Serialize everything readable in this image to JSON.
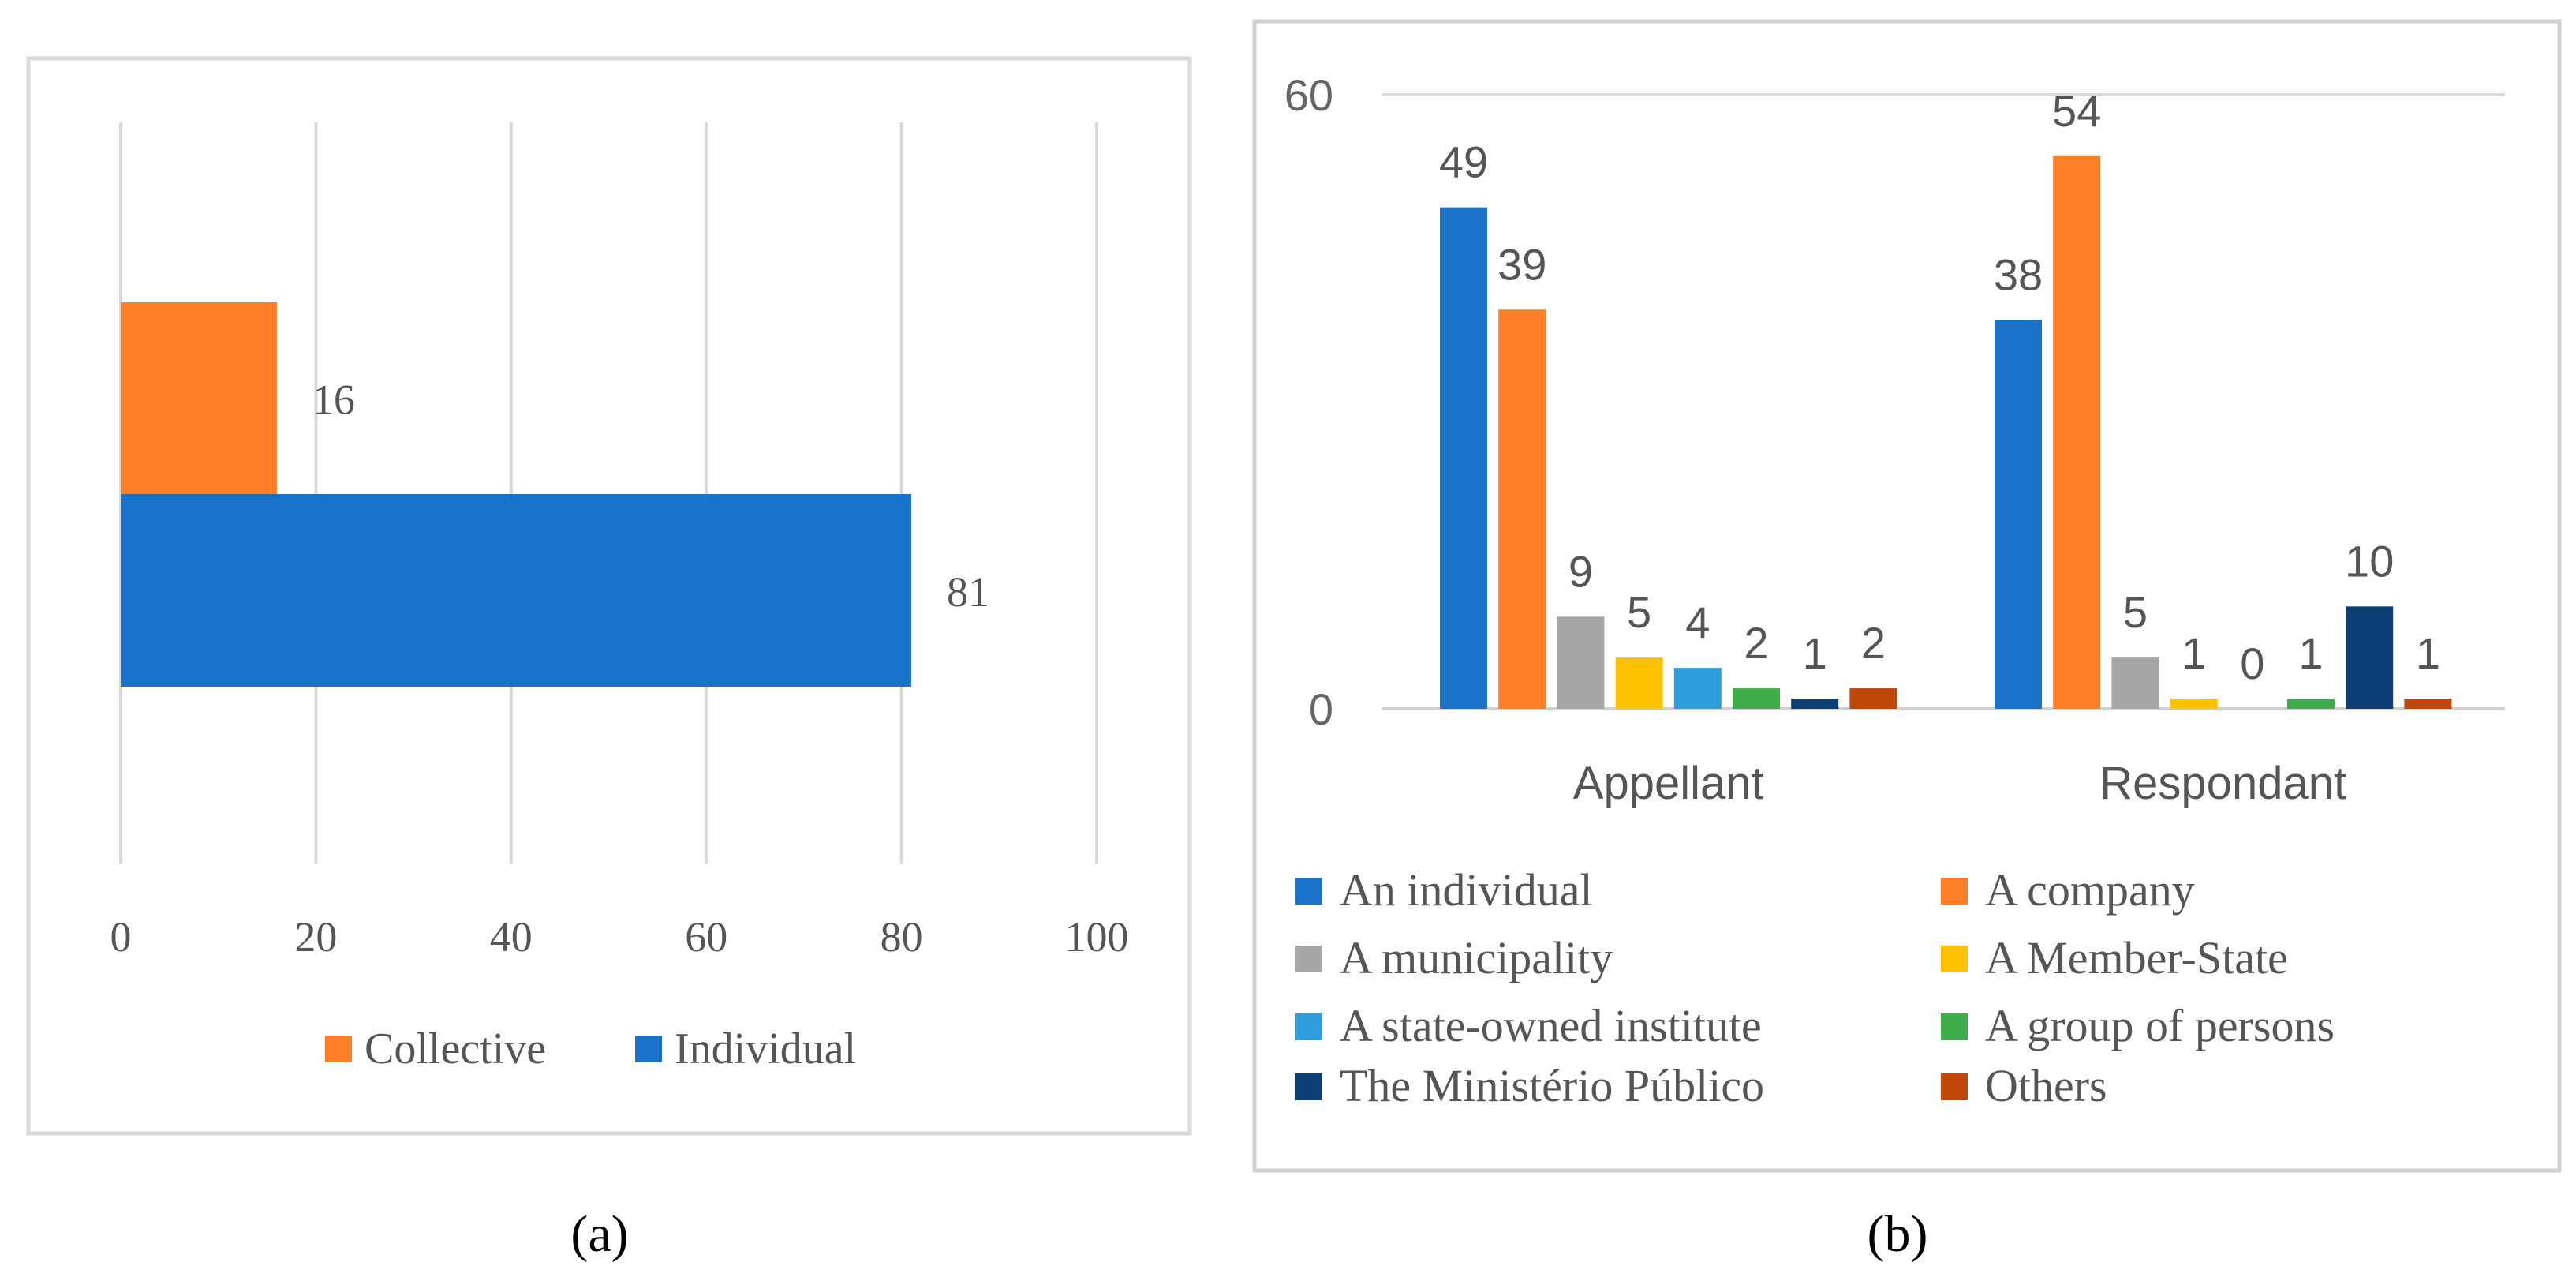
{
  "chart_data": [
    {
      "type": "bar",
      "orientation": "horizontal",
      "categories": [
        "Collective",
        "Individual"
      ],
      "values": [
        16,
        81
      ],
      "colors": [
        "#FF7F27",
        "#1A73C9"
      ],
      "legend": [
        "Collective",
        "Individual"
      ],
      "xlim": [
        0,
        100
      ],
      "xticks": [
        "0",
        "20",
        "40",
        "60",
        "80",
        "100"
      ],
      "caption": "(a)",
      "legend_position": "bottom"
    },
    {
      "type": "bar",
      "orientation": "vertical",
      "categories": [
        "Appellant",
        "Respondant"
      ],
      "ylim": [
        0,
        60
      ],
      "yticks": [
        "0",
        "60"
      ],
      "series": [
        {
          "name": "An individual",
          "color": "#1A73C9",
          "values": [
            49,
            38
          ]
        },
        {
          "name": "A company",
          "color": "#FF7F27",
          "values": [
            39,
            54
          ]
        },
        {
          "name": "A municipality",
          "color": "#A6A6A6",
          "values": [
            9,
            5
          ]
        },
        {
          "name": "A Member-State",
          "color": "#FFC000",
          "values": [
            5,
            1
          ]
        },
        {
          "name": "A state-owned institute",
          "color": "#2E9FDB",
          "values": [
            4,
            0
          ]
        },
        {
          "name": "A group of persons",
          "color": "#3DAE49",
          "values": [
            2,
            1
          ]
        },
        {
          "name": "The Ministério Público",
          "color": "#0B3F75",
          "values": [
            1,
            10
          ]
        },
        {
          "name": "Others",
          "color": "#C0470A",
          "values": [
            2,
            1
          ]
        }
      ],
      "caption": "(b)",
      "legend_position": "bottom"
    }
  ]
}
